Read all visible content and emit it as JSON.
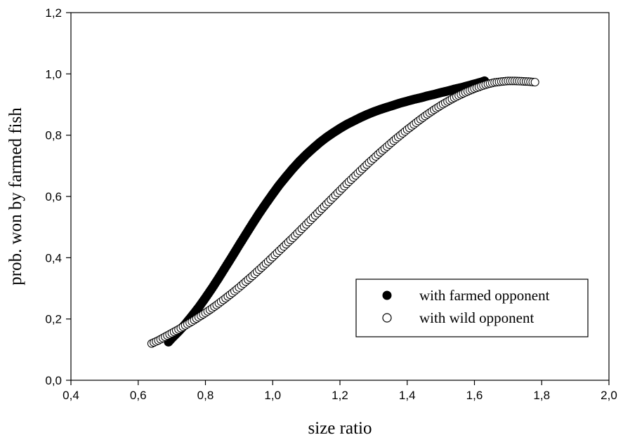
{
  "chart_data": {
    "type": "scatter",
    "xlabel": "size ratio",
    "ylabel": "prob. won by farmed fish",
    "xlim": [
      0.4,
      2.0
    ],
    "ylim": [
      0.0,
      1.2
    ],
    "x_ticks": [
      0.4,
      0.6,
      0.8,
      1.0,
      1.2,
      1.4,
      1.6,
      1.8,
      2.0
    ],
    "y_ticks": [
      0.0,
      0.2,
      0.4,
      0.6,
      0.8,
      1.0,
      1.2
    ],
    "x_tick_labels": [
      "0,4",
      "0,6",
      "0,8",
      "1,0",
      "1,2",
      "1,4",
      "1,6",
      "1,8",
      "2,0"
    ],
    "y_tick_labels": [
      "0,0",
      "0,2",
      "0,4",
      "0,6",
      "0,8",
      "1,0",
      "1,2"
    ],
    "grid": false,
    "legend_position": "lower-right",
    "series": [
      {
        "name": "with farmed opponent",
        "marker": "filled-circle",
        "color": "#000000",
        "x": [
          0.69,
          0.7,
          0.72,
          0.74,
          0.76,
          0.78,
          0.8,
          0.82,
          0.84,
          0.86,
          0.88,
          0.9,
          0.92,
          0.94,
          0.96,
          0.98,
          1.0,
          1.02,
          1.04,
          1.06,
          1.08,
          1.1,
          1.12,
          1.14,
          1.16,
          1.18,
          1.2,
          1.22,
          1.24,
          1.26,
          1.28,
          1.3,
          1.32,
          1.34,
          1.36,
          1.38,
          1.4,
          1.42,
          1.44,
          1.46,
          1.48,
          1.5,
          1.52,
          1.54,
          1.56,
          1.58,
          1.6,
          1.62,
          1.63
        ],
        "y": [
          0.125,
          0.137,
          0.159,
          0.183,
          0.21,
          0.238,
          0.269,
          0.301,
          0.335,
          0.37,
          0.405,
          0.441,
          0.476,
          0.511,
          0.545,
          0.577,
          0.608,
          0.638,
          0.665,
          0.691,
          0.715,
          0.737,
          0.757,
          0.776,
          0.793,
          0.808,
          0.822,
          0.835,
          0.846,
          0.857,
          0.867,
          0.876,
          0.884,
          0.891,
          0.898,
          0.905,
          0.911,
          0.917,
          0.922,
          0.928,
          0.933,
          0.939,
          0.944,
          0.95,
          0.955,
          0.961,
          0.967,
          0.973,
          0.977
        ]
      },
      {
        "name": "with wild opponent",
        "marker": "open-circle",
        "color": "#000000",
        "x": [
          0.64,
          0.66,
          0.68,
          0.7,
          0.72,
          0.74,
          0.76,
          0.78,
          0.8,
          0.82,
          0.84,
          0.86,
          0.88,
          0.9,
          0.92,
          0.94,
          0.96,
          0.98,
          1.0,
          1.02,
          1.04,
          1.06,
          1.08,
          1.1,
          1.12,
          1.14,
          1.16,
          1.18,
          1.2,
          1.22,
          1.24,
          1.26,
          1.28,
          1.3,
          1.32,
          1.34,
          1.36,
          1.38,
          1.4,
          1.42,
          1.44,
          1.46,
          1.48,
          1.5,
          1.52,
          1.54,
          1.56,
          1.58,
          1.6,
          1.62,
          1.64,
          1.66,
          1.68,
          1.7,
          1.72,
          1.74,
          1.76,
          1.78
        ],
        "y": [
          0.12,
          0.13,
          0.142,
          0.154,
          0.166,
          0.179,
          0.192,
          0.206,
          0.22,
          0.235,
          0.251,
          0.268,
          0.285,
          0.303,
          0.322,
          0.341,
          0.361,
          0.381,
          0.402,
          0.423,
          0.444,
          0.465,
          0.487,
          0.509,
          0.531,
          0.553,
          0.575,
          0.597,
          0.619,
          0.641,
          0.662,
          0.683,
          0.704,
          0.724,
          0.744,
          0.763,
          0.782,
          0.8,
          0.818,
          0.835,
          0.852,
          0.868,
          0.883,
          0.897,
          0.91,
          0.922,
          0.933,
          0.943,
          0.952,
          0.96,
          0.967,
          0.972,
          0.975,
          0.977,
          0.977,
          0.976,
          0.975,
          0.973
        ]
      }
    ]
  }
}
